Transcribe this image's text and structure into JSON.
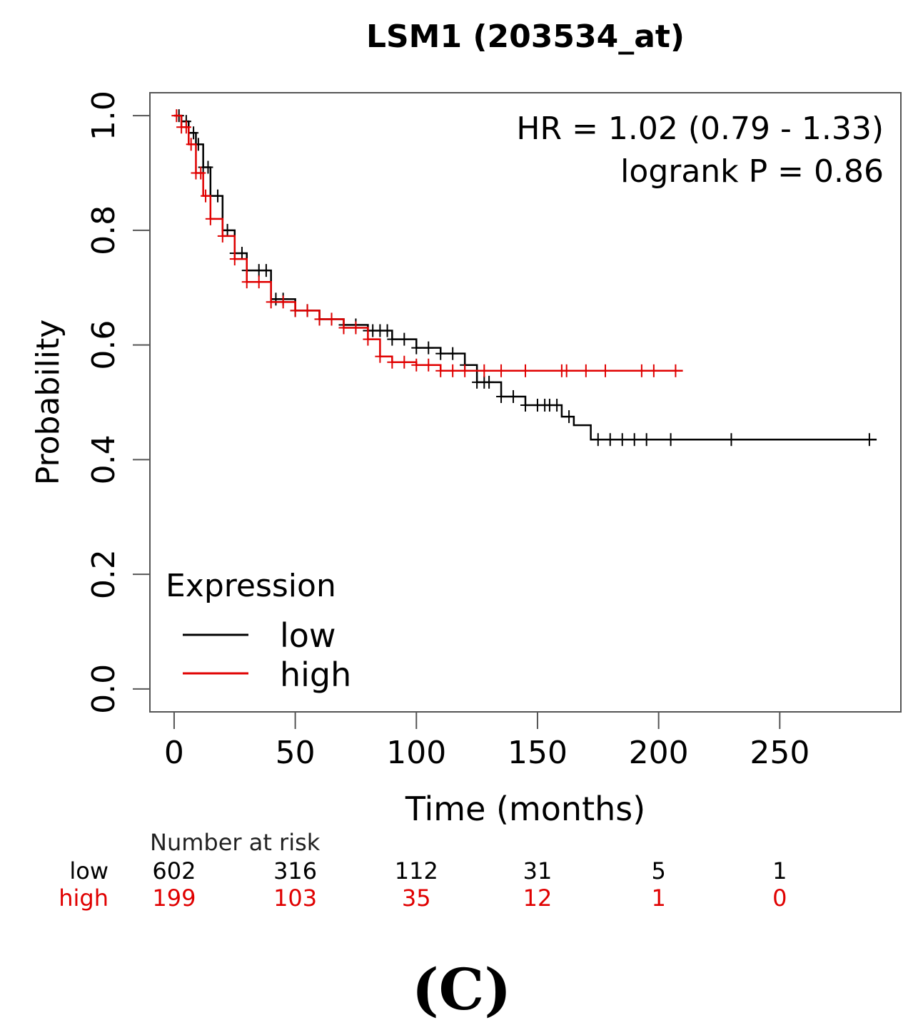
{
  "chart_data": {
    "type": "line",
    "subtype": "kaplan-meier",
    "title": "LSM1 (203534_at)",
    "xlabel": "Time (months)",
    "ylabel": "Probability",
    "xlim": [
      -10,
      300
    ],
    "ylim": [
      -0.04,
      1.04
    ],
    "x_ticks": [
      "0",
      "50",
      "100",
      "150",
      "200",
      "250"
    ],
    "x_tick_values": [
      0,
      50,
      100,
      150,
      200,
      250
    ],
    "y_ticks": [
      "0.0",
      "0.2",
      "0.4",
      "0.6",
      "0.8",
      "1.0"
    ],
    "y_tick_values": [
      0.0,
      0.2,
      0.4,
      0.6,
      0.8,
      1.0
    ],
    "annotations": [
      "HR = 1.02 (0.79 - 1.33)",
      "logrank P = 0.86"
    ],
    "legend": {
      "title": "Expression",
      "position": "bottom-left",
      "entries": [
        "low",
        "high"
      ]
    },
    "series": [
      {
        "name": "low",
        "color": "#000000",
        "x": [
          0,
          3,
          6,
          9,
          12,
          15,
          20,
          25,
          30,
          40,
          50,
          60,
          70,
          80,
          90,
          100,
          110,
          120,
          125,
          135,
          145,
          160,
          165,
          172,
          200,
          250,
          290
        ],
        "y": [
          1.0,
          0.99,
          0.97,
          0.95,
          0.91,
          0.86,
          0.8,
          0.76,
          0.73,
          0.68,
          0.66,
          0.645,
          0.635,
          0.625,
          0.61,
          0.595,
          0.585,
          0.565,
          0.535,
          0.51,
          0.495,
          0.475,
          0.46,
          0.435,
          0.435,
          0.435,
          0.435
        ],
        "censor_x": [
          2,
          5,
          8,
          10,
          12,
          14,
          18,
          22,
          25,
          28,
          30,
          35,
          38,
          42,
          45,
          50,
          55,
          60,
          65,
          70,
          75,
          80,
          82,
          85,
          88,
          90,
          95,
          100,
          105,
          110,
          115,
          120,
          125,
          128,
          130,
          135,
          140,
          145,
          150,
          153,
          155,
          158,
          163,
          175,
          180,
          185,
          190,
          195,
          205,
          230,
          287
        ]
      },
      {
        "name": "high",
        "color": "#e00000",
        "x": [
          0,
          3,
          6,
          9,
          12,
          15,
          20,
          25,
          30,
          40,
          50,
          60,
          70,
          80,
          85,
          90,
          100,
          110,
          120,
          130,
          150,
          170,
          210
        ],
        "y": [
          1.0,
          0.98,
          0.95,
          0.9,
          0.86,
          0.82,
          0.79,
          0.75,
          0.71,
          0.675,
          0.66,
          0.645,
          0.63,
          0.61,
          0.58,
          0.57,
          0.565,
          0.555,
          0.555,
          0.555,
          0.555,
          0.555,
          0.555
        ],
        "censor_x": [
          1,
          3,
          5,
          7,
          9,
          11,
          13,
          15,
          20,
          25,
          30,
          35,
          40,
          45,
          50,
          55,
          60,
          65,
          70,
          75,
          80,
          85,
          90,
          95,
          100,
          105,
          110,
          115,
          120,
          128,
          135,
          145,
          160,
          162,
          170,
          178,
          193,
          198,
          207
        ]
      }
    ],
    "risk_table": {
      "title": "Number at risk",
      "times": [
        0,
        50,
        100,
        150,
        200,
        250
      ],
      "rows": [
        {
          "label": "low",
          "color": "#000000",
          "values": [
            "602",
            "316",
            "112",
            "31",
            "5",
            "1"
          ]
        },
        {
          "label": "high",
          "color": "#e00000",
          "values": [
            "199",
            "103",
            "35",
            "12",
            "1",
            "0"
          ]
        }
      ]
    }
  },
  "panel_label": "(C)"
}
